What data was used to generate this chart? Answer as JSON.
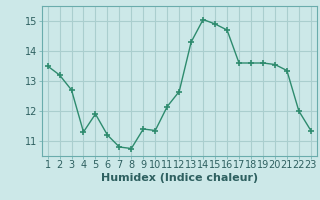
{
  "x": [
    1,
    2,
    3,
    4,
    5,
    6,
    7,
    8,
    9,
    10,
    11,
    12,
    13,
    14,
    15,
    16,
    17,
    18,
    19,
    20,
    21,
    22,
    23
  ],
  "y": [
    13.5,
    13.2,
    12.7,
    11.3,
    11.9,
    11.2,
    10.8,
    10.75,
    11.4,
    11.35,
    12.15,
    12.65,
    14.3,
    15.05,
    14.9,
    14.7,
    13.6,
    13.6,
    13.6,
    13.55,
    13.35,
    12.0,
    11.35
  ],
  "xlabel": "Humidex (Indice chaleur)",
  "ylim": [
    10.5,
    15.5
  ],
  "xlim": [
    0.5,
    23.5
  ],
  "yticks": [
    11,
    12,
    13,
    14,
    15
  ],
  "xticks": [
    1,
    2,
    3,
    4,
    5,
    6,
    7,
    8,
    9,
    10,
    11,
    12,
    13,
    14,
    15,
    16,
    17,
    18,
    19,
    20,
    21,
    22,
    23
  ],
  "line_color": "#2e8b6e",
  "marker_color": "#2e8b6e",
  "bg_color": "#cce8e8",
  "grid_color": "#aacece",
  "tick_label_color": "#2e6060",
  "xlabel_color": "#2e6060",
  "xlabel_fontsize": 8,
  "tick_fontsize": 7,
  "spine_color": "#6aacac"
}
